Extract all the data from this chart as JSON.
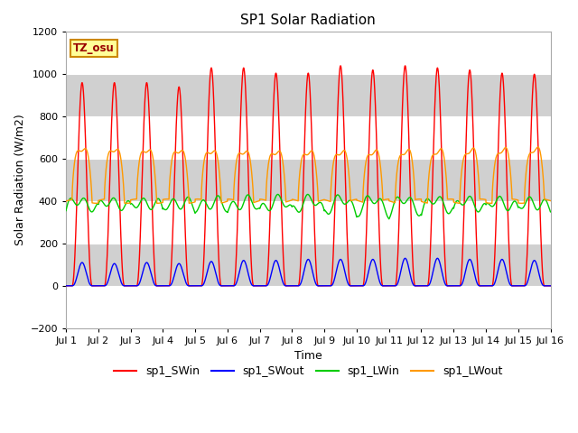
{
  "title": "SP1 Solar Radiation",
  "xlabel": "Time",
  "ylabel": "Solar Radiation (W/m2)",
  "ylim": [
    -200,
    1200
  ],
  "yticks": [
    -200,
    0,
    200,
    400,
    600,
    800,
    1000,
    1200
  ],
  "xtick_labels": [
    "Jul 1",
    "Jul 2",
    "Jul 3",
    "Jul 4",
    "Jul 5",
    "Jul 6",
    "Jul 7",
    "Jul 8",
    "Jul 9",
    "Jul 10",
    "Jul 11",
    "Jul 12",
    "Jul 13",
    "Jul 14",
    "Jul 15",
    "Jul 16"
  ],
  "colors": {
    "SWin": "#ff0000",
    "SWout": "#0000ff",
    "LWin": "#00cc00",
    "LWout": "#ff9900"
  },
  "legend_labels": [
    "sp1_SWin",
    "sp1_SWout",
    "sp1_LWin",
    "sp1_LWout"
  ],
  "tz_label": "TZ_osu",
  "tz_color": "#990000",
  "tz_bg": "#ffff99",
  "tz_edge": "#cc8800",
  "n_days": 15,
  "pts_per_day": 288,
  "SWin_peaks": [
    960,
    960,
    960,
    940,
    1030,
    1030,
    1005,
    1005,
    1040,
    1020,
    1040,
    1030,
    1020,
    1005,
    1000
  ],
  "SWout_peaks": [
    110,
    105,
    110,
    105,
    115,
    120,
    120,
    125,
    125,
    125,
    130,
    130,
    125,
    125,
    120
  ],
  "LWin_base": 355,
  "LWin_amp": 75,
  "LWout_night": 400,
  "LWout_day_peak": 660,
  "linewidth": 1.0
}
